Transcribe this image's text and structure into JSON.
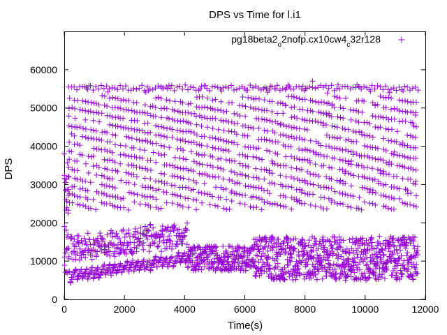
{
  "chart_data": {
    "type": "scatter",
    "title": "DPS vs Time for l.i1",
    "xlabel": "Time(s)",
    "ylabel": "DPS",
    "xlim": [
      0,
      12000
    ],
    "ylim": [
      0,
      70000
    ],
    "x_ticks": [
      "0",
      "2000",
      "4000",
      "6000",
      "8000",
      "10000",
      "12000"
    ],
    "y_ticks": [
      "0",
      "10000",
      "20000",
      "30000",
      "40000",
      "50000",
      "60000"
    ],
    "x_tick_values": [
      0,
      2000,
      4000,
      6000,
      8000,
      10000,
      12000
    ],
    "y_tick_values": [
      0,
      10000,
      20000,
      30000,
      40000,
      50000,
      60000
    ],
    "legend_position": "top-right",
    "grid": false,
    "series": [
      {
        "name_parts": [
          "pg18beta2",
          "o",
          "2nofp.cx10cw4",
          "c",
          "32r128"
        ],
        "color": "#9400d3",
        "marker": "plus",
        "x_range": [
          0,
          11760
        ],
        "bands": [
          {
            "x": [
              150,
              11760
            ],
            "y": [
              54000,
              56500
            ],
            "note": "top band"
          },
          {
            "x": [
              150,
              11760
            ],
            "y": [
              22000,
              54000
            ],
            "note": "sawtooth mid bands"
          },
          {
            "x": [
              150,
              4100
            ],
            "y": [
              4000,
              20000
            ],
            "note": "lower early cluster"
          },
          {
            "x": [
              4100,
              6300
            ],
            "y": [
              7000,
              14000
            ],
            "note": "lower mid cluster"
          },
          {
            "x": [
              6300,
              11760
            ],
            "y": [
              4000,
              17000
            ],
            "note": "lower late cluster"
          }
        ],
        "notable_points": [
          {
            "x": 0,
            "y": 38000
          },
          {
            "x": 8250,
            "y": 57000
          },
          {
            "x": 100,
            "y": 7000
          }
        ]
      }
    ]
  }
}
